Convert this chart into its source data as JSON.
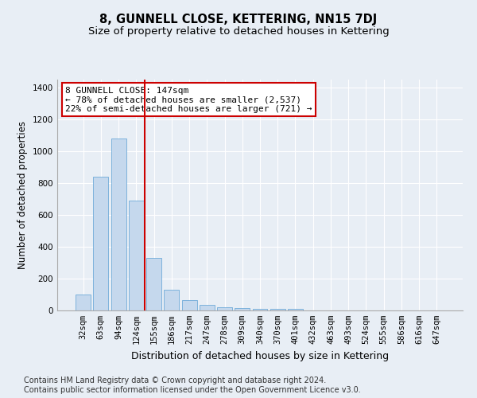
{
  "title": "8, GUNNELL CLOSE, KETTERING, NN15 7DJ",
  "subtitle": "Size of property relative to detached houses in Kettering",
  "xlabel": "Distribution of detached houses by size in Kettering",
  "ylabel": "Number of detached properties",
  "categories": [
    "32sqm",
    "63sqm",
    "94sqm",
    "124sqm",
    "155sqm",
    "186sqm",
    "217sqm",
    "247sqm",
    "278sqm",
    "309sqm",
    "340sqm",
    "370sqm",
    "401sqm",
    "432sqm",
    "463sqm",
    "493sqm",
    "524sqm",
    "555sqm",
    "586sqm",
    "616sqm",
    "647sqm"
  ],
  "values": [
    100,
    840,
    1080,
    690,
    330,
    130,
    65,
    35,
    20,
    15,
    10,
    10,
    10,
    0,
    0,
    0,
    0,
    0,
    0,
    0,
    0
  ],
  "bar_color": "#c5d8ed",
  "bar_edge_color": "#5a9fd4",
  "vline_color": "#cc0000",
  "vline_x_index": 3,
  "annotation_text": "8 GUNNELL CLOSE: 147sqm\n← 78% of detached houses are smaller (2,537)\n22% of semi-detached houses are larger (721) →",
  "annotation_box_color": "#ffffff",
  "annotation_box_edge_color": "#cc0000",
  "ylim": [
    0,
    1450
  ],
  "yticks": [
    0,
    200,
    400,
    600,
    800,
    1000,
    1200,
    1400
  ],
  "background_color": "#e8eef5",
  "plot_bg_color": "#e8eef5",
  "footer_text": "Contains HM Land Registry data © Crown copyright and database right 2024.\nContains public sector information licensed under the Open Government Licence v3.0.",
  "title_fontsize": 10.5,
  "subtitle_fontsize": 9.5,
  "xlabel_fontsize": 9,
  "ylabel_fontsize": 8.5,
  "tick_fontsize": 7.5,
  "footer_fontsize": 7,
  "annotation_fontsize": 8
}
